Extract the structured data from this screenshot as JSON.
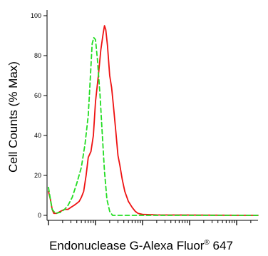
{
  "chart_data": {
    "type": "line",
    "title": "",
    "xlabel": "Endonuclease G-Alexa Fluor",
    "xlabel_sup": "®",
    "xlabel_suffix": " 647",
    "ylabel": "Cell Counts (% Max)",
    "ylim": [
      0,
      100
    ],
    "yticks": [
      0,
      20,
      40,
      60,
      80,
      100
    ],
    "xscale": "log",
    "grid": false,
    "legend": "none",
    "x_decades": [
      10,
      100,
      1000,
      10000,
      100000,
      1000000
    ],
    "series": [
      {
        "color": "#ee1111",
        "style": "solid",
        "points": [
          [
            10,
            12
          ],
          [
            11,
            8
          ],
          [
            12,
            3
          ],
          [
            13,
            1
          ],
          [
            15,
            1
          ],
          [
            18,
            2
          ],
          [
            22,
            3
          ],
          [
            26,
            3
          ],
          [
            30,
            4
          ],
          [
            35,
            5
          ],
          [
            40,
            6
          ],
          [
            45,
            7
          ],
          [
            50,
            9
          ],
          [
            56,
            12
          ],
          [
            63,
            20
          ],
          [
            70,
            29
          ],
          [
            80,
            32
          ],
          [
            90,
            40
          ],
          [
            100,
            57
          ],
          [
            115,
            70
          ],
          [
            130,
            83
          ],
          [
            145,
            91
          ],
          [
            155,
            95
          ],
          [
            165,
            93
          ],
          [
            180,
            85
          ],
          [
            200,
            70
          ],
          [
            220,
            64
          ],
          [
            240,
            55
          ],
          [
            270,
            42
          ],
          [
            300,
            30
          ],
          [
            330,
            25
          ],
          [
            370,
            18
          ],
          [
            420,
            12
          ],
          [
            500,
            7
          ],
          [
            600,
            4
          ],
          [
            700,
            2
          ],
          [
            800,
            1
          ],
          [
            1000,
            0.5
          ],
          [
            2000,
            0.2
          ],
          [
            1000000,
            0
          ]
        ]
      },
      {
        "color": "#22dd22",
        "style": "dashed",
        "points": [
          [
            10,
            14
          ],
          [
            11,
            8
          ],
          [
            12,
            3
          ],
          [
            14,
            1
          ],
          [
            18,
            1.5
          ],
          [
            22,
            3
          ],
          [
            26,
            5
          ],
          [
            32,
            9
          ],
          [
            40,
            16
          ],
          [
            50,
            24
          ],
          [
            60,
            36
          ],
          [
            70,
            50
          ],
          [
            78,
            70
          ],
          [
            85,
            86
          ],
          [
            92,
            89
          ],
          [
            100,
            88
          ],
          [
            110,
            78
          ],
          [
            125,
            60
          ],
          [
            140,
            40
          ],
          [
            155,
            22
          ],
          [
            175,
            8
          ],
          [
            200,
            2
          ],
          [
            230,
            0
          ],
          [
            1000000,
            0
          ]
        ]
      }
    ]
  }
}
